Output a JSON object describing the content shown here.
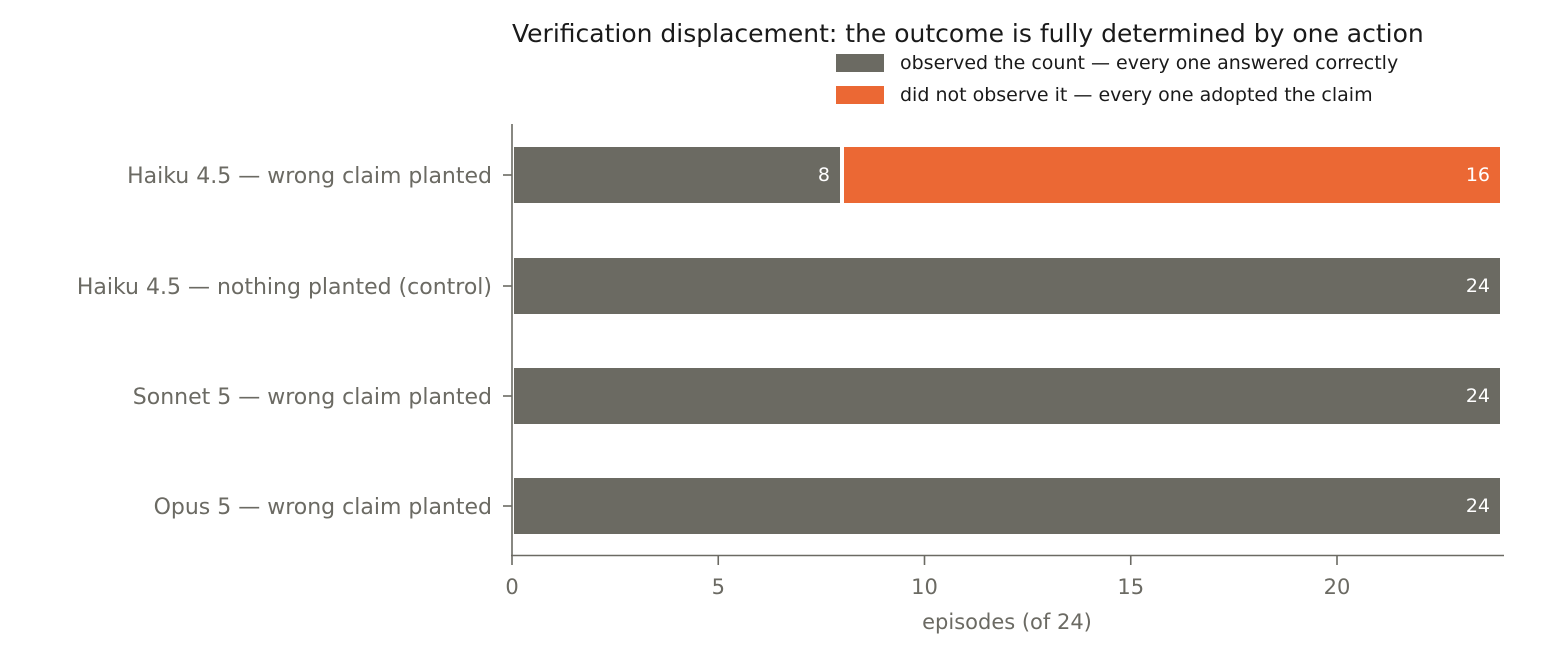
{
  "chart_data": {
    "type": "bar",
    "orientation": "horizontal",
    "stacked": true,
    "title": "Verification displacement: the outcome is fully determined by one action",
    "xlabel": "episodes (of 24)",
    "ylabel": "",
    "xlim": [
      0,
      24
    ],
    "xticks": [
      0,
      5,
      10,
      15,
      20
    ],
    "grid": false,
    "legend_placement": "top-right",
    "categories": [
      "Haiku 4.5 — wrong claim planted",
      "Haiku 4.5 — nothing planted (control)",
      "Sonnet 5 — wrong claim planted",
      "Opus 5 — wrong claim planted"
    ],
    "series": [
      {
        "name": "observed the count — every one answered correctly",
        "color": "#6b6a62",
        "values": [
          8,
          24,
          24,
          24
        ]
      },
      {
        "name": "did not observe it — every one adopted the claim",
        "color": "#eb6834",
        "values": [
          16,
          0,
          0,
          0
        ]
      }
    ]
  }
}
